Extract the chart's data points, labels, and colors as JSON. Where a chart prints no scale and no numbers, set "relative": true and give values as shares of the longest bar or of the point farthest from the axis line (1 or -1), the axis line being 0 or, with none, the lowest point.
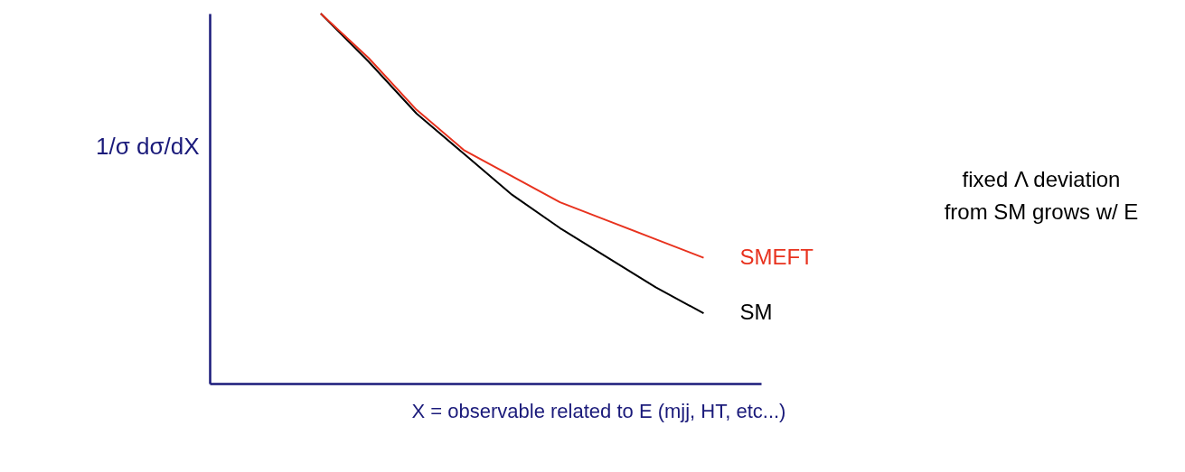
{
  "chart_data": {
    "type": "line",
    "relative": true,
    "ylabel": "1/σ dσ/dX",
    "xlabel": "X = observable related to E (mjj, HT, etc...)",
    "categories": [
      null,
      null,
      null,
      null,
      null,
      null,
      null,
      null,
      null
    ],
    "series": [
      {
        "name": "SM",
        "color": "#000000",
        "values": [
          1,
          0.87,
          0.73,
          0.62,
          0.51,
          0.42,
          0.34,
          0.26,
          0.19
        ]
      },
      {
        "name": "SMEFT",
        "color": "#e8321e",
        "values": [
          1,
          0.88,
          0.74,
          0.63,
          0.56,
          0.49,
          0.44,
          0.39,
          0.34
        ]
      }
    ],
    "annotations": [
      "fixed Λ deviation from SM grows w/ E"
    ],
    "tick_labels": false,
    "marker": "none",
    "line_style": "solid"
  }
}
